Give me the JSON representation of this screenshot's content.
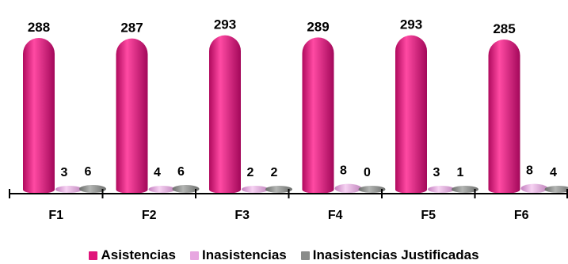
{
  "chart_data": {
    "type": "bar",
    "title": "",
    "xlabel": "",
    "ylabel": "",
    "categories": [
      "F1",
      "F2",
      "F3",
      "F4",
      "F5",
      "F6"
    ],
    "series": [
      {
        "name": "Asistencias",
        "values": [
          288,
          287,
          293,
          289,
          293,
          285
        ],
        "color": "#e0147a"
      },
      {
        "name": "Inasistencias",
        "values": [
          3,
          4,
          2,
          8,
          3,
          8
        ],
        "color": "#e7a6e0"
      },
      {
        "name": "Inasistencias Justificadas",
        "values": [
          6,
          6,
          2,
          0,
          1,
          4
        ],
        "color": "#8a8c8a"
      }
    ],
    "ylim": [
      0,
      300
    ],
    "grid": false,
    "legend_position": "bottom"
  }
}
